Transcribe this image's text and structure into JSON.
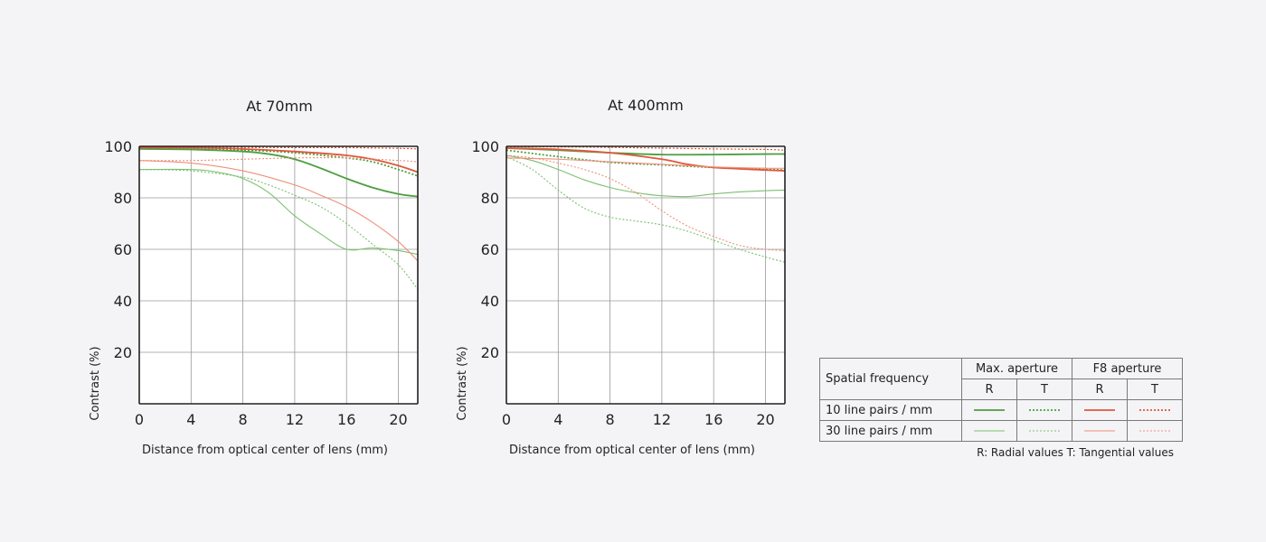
{
  "chart_data": [
    {
      "type": "line",
      "title": "At 70mm",
      "xlabel": "Distance from optical center of lens (mm)",
      "ylabel": "Contrast (%)",
      "xlim": [
        0,
        21.5
      ],
      "ylim": [
        0,
        100
      ],
      "xticks": [
        0,
        4,
        8,
        12,
        16,
        20
      ],
      "yticks": [
        20,
        40,
        60,
        80,
        100
      ],
      "grid": true,
      "series": [
        {
          "name": "10 line pairs / mm - Max. aperture - R",
          "color": "#4e9e3f",
          "style": "solid",
          "width": 1.8,
          "x": [
            0,
            4,
            8,
            10,
            12,
            14,
            16,
            18,
            20,
            21.5
          ],
          "y": [
            99,
            98.8,
            98,
            97,
            95,
            91.5,
            87.5,
            84,
            81.5,
            80.5
          ]
        },
        {
          "name": "10 line pairs / mm - Max. aperture - T",
          "color": "#4e9e3f",
          "style": "dotted",
          "width": 1.8,
          "x": [
            0,
            4,
            8,
            12,
            16,
            18,
            20,
            21.5
          ],
          "y": [
            99.2,
            99,
            98.6,
            97.5,
            95.5,
            94,
            91,
            88.5
          ]
        },
        {
          "name": "10 line pairs / mm - F8 aperture - R",
          "color": "#e0573c",
          "style": "solid",
          "width": 1.8,
          "x": [
            0,
            4,
            8,
            12,
            16,
            18,
            20,
            21.5
          ],
          "y": [
            99.5,
            99.5,
            99,
            98,
            96.5,
            95,
            92.5,
            90
          ]
        },
        {
          "name": "10 line pairs / mm - F8 aperture - T",
          "color": "#e0573c",
          "style": "dotted",
          "width": 1.2,
          "x": [
            0,
            4,
            8,
            12,
            16,
            20,
            21.5
          ],
          "y": [
            99.8,
            99.8,
            99.6,
            99.5,
            99.5,
            99.2,
            99
          ]
        },
        {
          "name": "30 line pairs / mm - Max. aperture - R",
          "color": "#7cc070",
          "style": "solid",
          "width": 1.1,
          "x": [
            0,
            4,
            6,
            8,
            10,
            12,
            14,
            16,
            18,
            20,
            21.5
          ],
          "y": [
            91,
            91,
            90,
            87.5,
            82,
            73,
            66,
            60,
            60.5,
            59.5,
            58
          ]
        },
        {
          "name": "30 line pairs / mm - Max. aperture - T",
          "color": "#7cc070",
          "style": "dotted",
          "width": 1.1,
          "x": [
            0,
            4,
            8,
            10,
            12,
            14,
            16,
            18,
            20,
            21.5
          ],
          "y": [
            91,
            90.5,
            88,
            85,
            81,
            76.5,
            70,
            62,
            54,
            44.5
          ]
        },
        {
          "name": "30 line pairs / mm - F8 aperture - R",
          "color": "#ef8f78",
          "style": "solid",
          "width": 1.1,
          "x": [
            0,
            4,
            8,
            12,
            14,
            16,
            18,
            20,
            21.5
          ],
          "y": [
            94.5,
            93.5,
            90.5,
            85,
            81,
            76.5,
            70.5,
            63,
            55.5
          ]
        },
        {
          "name": "30 line pairs / mm - F8 aperture - T",
          "color": "#ef8f78",
          "style": "dotted",
          "width": 1.1,
          "x": [
            0,
            4,
            8,
            12,
            16,
            20,
            21.5
          ],
          "y": [
            94.5,
            94.5,
            95,
            95.5,
            95.5,
            94.5,
            94
          ]
        }
      ]
    },
    {
      "type": "line",
      "title": "At 400mm",
      "xlabel": "Distance from optical center of lens (mm)",
      "ylabel": "Contrast (%)",
      "xlim": [
        0,
        21.5
      ],
      "ylim": [
        0,
        100
      ],
      "xticks": [
        0,
        4,
        8,
        12,
        16,
        20
      ],
      "yticks": [
        20,
        40,
        60,
        80,
        100
      ],
      "grid": true,
      "series": [
        {
          "name": "10 line pairs / mm - Max. aperture - R",
          "color": "#4e9e3f",
          "style": "solid",
          "width": 1.8,
          "x": [
            0,
            4,
            8,
            12,
            16,
            20,
            21.5
          ],
          "y": [
            99.3,
            98.5,
            97.5,
            96.8,
            96.8,
            97,
            97
          ]
        },
        {
          "name": "10 line pairs / mm - Max. aperture - T",
          "color": "#4e9e3f",
          "style": "dotted",
          "width": 1.8,
          "x": [
            0,
            4,
            8,
            12,
            16,
            20,
            21.5
          ],
          "y": [
            98.5,
            96,
            93.8,
            92.8,
            91.8,
            91,
            90.8
          ]
        },
        {
          "name": "10 line pairs / mm - F8 aperture - R",
          "color": "#e0573c",
          "style": "solid",
          "width": 1.8,
          "x": [
            0,
            4,
            8,
            12,
            14,
            16,
            20,
            21.5
          ],
          "y": [
            99.3,
            98.8,
            97.5,
            95,
            93,
            91.8,
            90.8,
            90.5
          ]
        },
        {
          "name": "10 line pairs / mm - F8 aperture - T",
          "color": "#e0573c",
          "style": "dotted",
          "width": 1.2,
          "x": [
            0,
            4,
            8,
            12,
            16,
            20,
            21.5
          ],
          "y": [
            99.8,
            99.8,
            99.6,
            99.3,
            99,
            98.8,
            98.5
          ]
        },
        {
          "name": "30 line pairs / mm - Max. aperture - R",
          "color": "#7cc070",
          "style": "solid",
          "width": 1.1,
          "x": [
            0,
            2,
            4,
            6,
            8,
            10,
            12,
            14,
            16,
            18,
            20,
            21.5
          ],
          "y": [
            96.5,
            94.5,
            91,
            87,
            84,
            82,
            80.8,
            80.5,
            81.5,
            82.3,
            82.8,
            83
          ]
        },
        {
          "name": "30 line pairs / mm - Max. aperture - T",
          "color": "#7cc070",
          "style": "dotted",
          "width": 1.1,
          "x": [
            0,
            2,
            4,
            6,
            8,
            10,
            12,
            14,
            16,
            18,
            20,
            21.5
          ],
          "y": [
            96,
            91,
            83,
            76,
            72.5,
            71,
            69.5,
            67,
            63.5,
            60,
            57,
            55
          ]
        },
        {
          "name": "30 line pairs / mm - F8 aperture - R",
          "color": "#ef8f78",
          "style": "solid",
          "width": 1.1,
          "x": [
            0,
            4,
            8,
            12,
            16,
            20,
            21.5
          ],
          "y": [
            95.5,
            95,
            94,
            93,
            92,
            91.5,
            91.5
          ]
        },
        {
          "name": "30 line pairs / mm - F8 aperture - T",
          "color": "#ef8f78",
          "style": "dotted",
          "width": 1.1,
          "x": [
            0,
            2,
            4,
            6,
            8,
            10,
            12,
            14,
            16,
            18,
            20,
            21.5
          ],
          "y": [
            96.5,
            95.5,
            93.5,
            91,
            87.5,
            82,
            75,
            69,
            65,
            61.5,
            60,
            59.5
          ]
        }
      ]
    }
  ],
  "legend": {
    "spatial_label": "Spatial frequency",
    "max_aperture": "Max. aperture",
    "f8_aperture": "F8 aperture",
    "r_label": "R",
    "t_label": "T",
    "row_10": "10 line pairs / mm",
    "row_30": "30 line pairs / mm",
    "colors": {
      "max_10": "#4e9e3f",
      "f8_10": "#e0573c",
      "max_30": "#7cc070",
      "f8_30": "#ef8f78"
    }
  },
  "note": "R: Radial values  T: Tangential values"
}
